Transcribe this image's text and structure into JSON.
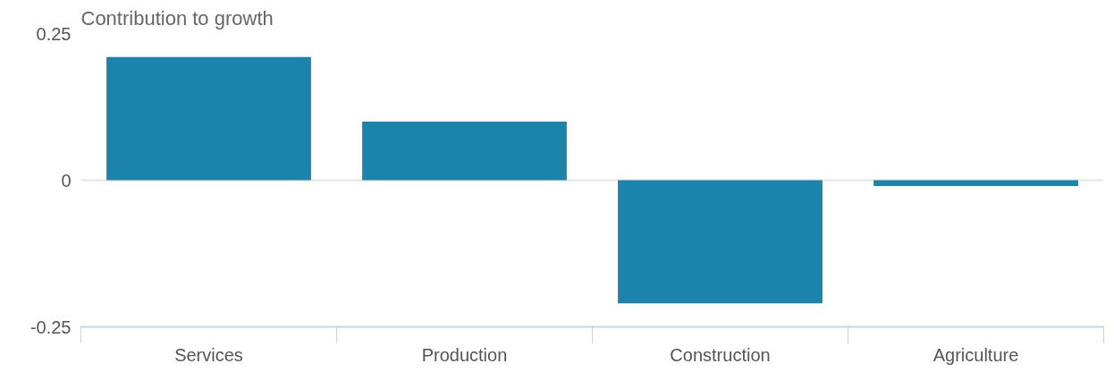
{
  "chart_data": {
    "type": "bar",
    "ylabel": "Contribution to growth",
    "categories": [
      "Services",
      "Production",
      "Construction",
      "Agriculture"
    ],
    "values": [
      0.21,
      0.1,
      -0.21,
      -0.01
    ],
    "color": "#1b84ad",
    "ylim": [
      -0.25,
      0.25
    ],
    "yticks": [
      {
        "value": -0.25,
        "label": "-0.25"
      },
      {
        "value": 0,
        "label": "0"
      },
      {
        "value": 0.25,
        "label": "0.25"
      }
    ],
    "grid": "y"
  }
}
